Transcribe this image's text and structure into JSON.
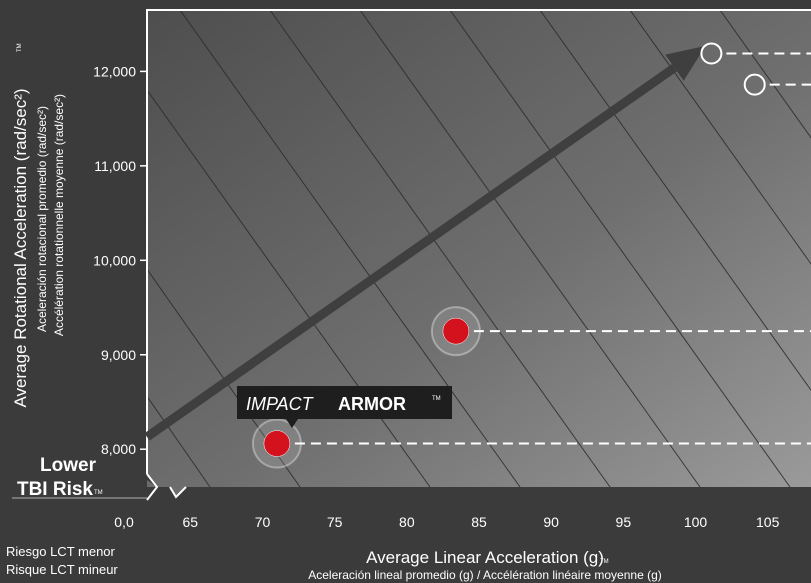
{
  "chart_data": {
    "type": "scatter",
    "xlabel": "Average Linear Acceleration (g)",
    "xlabel_mark": "TM",
    "xlabel_sub": "Aceleración lineal promedio (g) / Accélération linéaire moyenne (g)",
    "ylabel": "Average Rotational Acceleration (rad/sec²)",
    "ylabel_mark": "TM",
    "ylabel_sub1": "Aceleración rotacional promedio (rad/sec²)",
    "ylabel_sub2": "Accélération rotationnelle moyenne (rad/sec²)",
    "x_ticks": [
      "0,0",
      "65",
      "70",
      "75",
      "80",
      "85",
      "90",
      "95",
      "100",
      "105"
    ],
    "y_ticks": [
      "8,000",
      "9,000",
      "10,000",
      "11,000",
      "12,000"
    ],
    "xlim": [
      62,
      108
    ],
    "ylim": [
      7600,
      12650
    ],
    "lower_risk": {
      "line1": "Lower",
      "line2": "TBI Risk",
      "mark": "TM",
      "es": "Riesgo LCT menor",
      "fr": "Risque LCT mineur"
    },
    "points": [
      {
        "name": "Impact Armor",
        "x": 71,
        "y": 8060,
        "style": "red"
      },
      {
        "name": "",
        "x": 83.4,
        "y": 9250,
        "style": "red"
      },
      {
        "name": "",
        "x": 101.1,
        "y": 12190,
        "style": "hollow"
      },
      {
        "name": "",
        "x": 104.1,
        "y": 11860,
        "style": "hollow"
      }
    ],
    "callout": {
      "part1": "IMPACT",
      "part2": "ARMOR",
      "mark": "TM"
    },
    "trend_arrow": {
      "from": [
        62,
        8130
      ],
      "to": [
        100.7,
        12270
      ]
    },
    "colors": {
      "background": "#3b3b3b",
      "point": "#d4121d",
      "text": "#ffffff"
    }
  }
}
